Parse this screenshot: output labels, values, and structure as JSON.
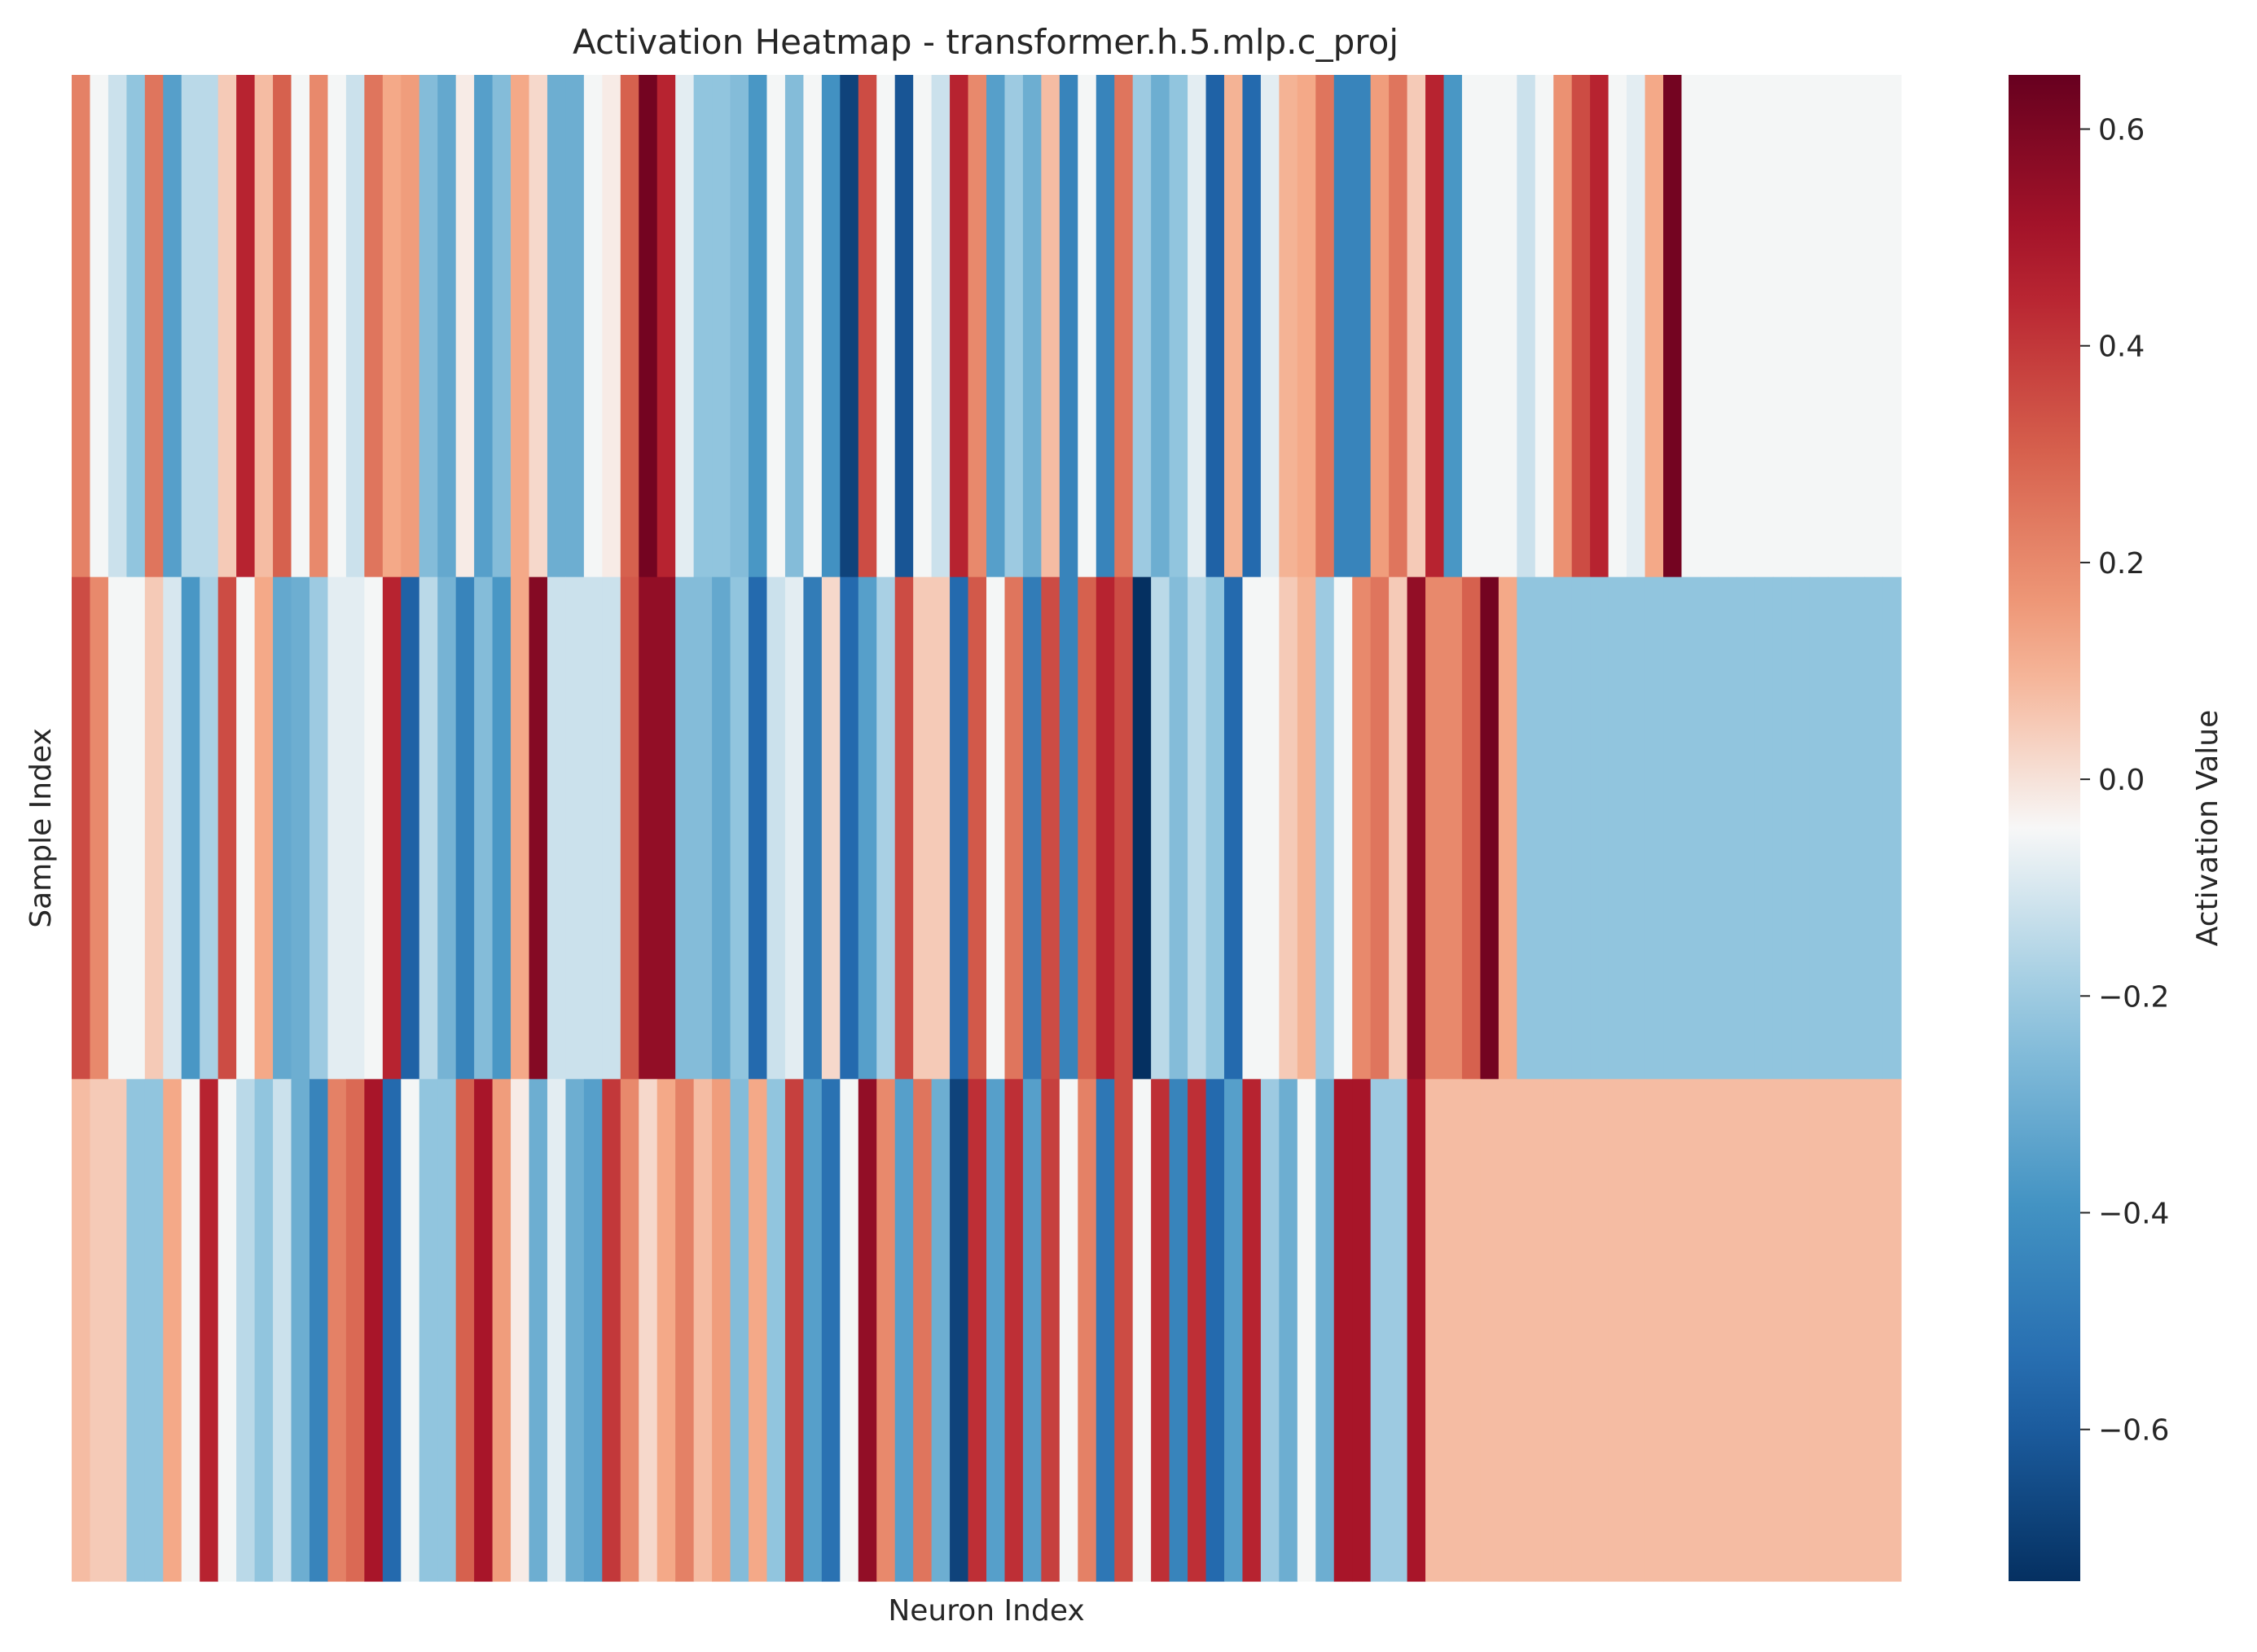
{
  "chart_data": {
    "type": "heatmap",
    "title": "Activation Heatmap - transformer.h.5.mlp.c_proj",
    "xlabel": "Neuron Index",
    "ylabel": "Sample Index",
    "colorbar_label": "Activation Value",
    "colormap": "RdBu_r",
    "vmin": -0.74,
    "vmax": 0.65,
    "colorbar_ticks": [
      0.6,
      0.4,
      0.2,
      0.0,
      -0.2,
      -0.4,
      -0.6
    ],
    "colorbar_tick_labels": [
      "0.6",
      "0.4",
      "0.2",
      "0.0",
      "−0.2",
      "−0.4",
      "−0.6"
    ],
    "n_samples": 3,
    "n_neurons": 100,
    "values": [
      [
        0.22,
        -0.05,
        -0.12,
        -0.22,
        0.25,
        -0.35,
        -0.15,
        -0.15,
        0.05,
        0.45,
        0.08,
        0.3,
        -0.05,
        0.2,
        -0.05,
        -0.12,
        0.25,
        0.12,
        0.15,
        -0.25,
        -0.32,
        -0.02,
        -0.35,
        -0.25,
        0.12,
        0.02,
        -0.3,
        -0.3,
        -0.05,
        -0.02,
        0.3,
        0.62,
        0.45,
        -0.08,
        -0.22,
        -0.22,
        -0.25,
        -0.38,
        -0.05,
        -0.25,
        -0.05,
        -0.4,
        -0.68,
        0.35,
        -0.05,
        -0.62,
        -0.05,
        -0.12,
        0.45,
        0.2,
        -0.35,
        -0.2,
        -0.3,
        0.08,
        -0.45,
        -0.05,
        -0.45,
        0.25,
        -0.2,
        -0.3,
        -0.22,
        -0.08,
        -0.58,
        0.1,
        -0.55,
        -0.08,
        0.1,
        0.12,
        0.25,
        -0.45,
        -0.45,
        0.15,
        0.25,
        0.05,
        0.45,
        -0.38,
        -0.05,
        -0.05,
        -0.05,
        -0.12,
        -0.05,
        0.18,
        0.35,
        0.45,
        -0.05,
        -0.08,
        0.12,
        0.62,
        -0.05,
        -0.05,
        -0.05,
        -0.05,
        -0.05,
        -0.05,
        -0.05,
        -0.05,
        -0.05,
        -0.05,
        -0.05,
        -0.05
      ],
      [
        0.35,
        0.2,
        -0.05,
        -0.05,
        0.05,
        -0.1,
        -0.38,
        -0.18,
        0.35,
        -0.05,
        0.12,
        -0.32,
        -0.3,
        -0.2,
        -0.08,
        -0.08,
        -0.05,
        0.45,
        -0.58,
        -0.15,
        -0.28,
        -0.45,
        -0.25,
        -0.38,
        0.12,
        0.58,
        -0.12,
        -0.12,
        -0.12,
        -0.12,
        0.32,
        0.55,
        0.55,
        -0.25,
        -0.25,
        -0.32,
        -0.22,
        -0.55,
        -0.12,
        -0.08,
        -0.48,
        0.02,
        -0.55,
        -0.35,
        -0.18,
        0.35,
        0.05,
        0.05,
        -0.55,
        0.32,
        -0.05,
        0.25,
        -0.48,
        0.35,
        -0.45,
        0.3,
        0.45,
        0.35,
        -0.74,
        -0.15,
        -0.25,
        -0.15,
        -0.22,
        -0.55,
        -0.05,
        -0.05,
        0.05,
        0.1,
        -0.2,
        -0.05,
        0.2,
        0.25,
        0.05,
        0.55,
        0.2,
        0.2,
        0.3,
        0.62,
        0.12,
        -0.22,
        -0.22,
        -0.22,
        -0.22,
        -0.22,
        -0.22,
        -0.22,
        -0.22,
        -0.22,
        -0.22,
        -0.22,
        -0.22,
        -0.22,
        -0.22,
        -0.22,
        -0.22,
        -0.22,
        -0.22,
        -0.22,
        -0.22,
        -0.22
      ],
      [
        0.08,
        0.05,
        0.05,
        -0.22,
        -0.22,
        0.12,
        -0.05,
        0.45,
        -0.05,
        -0.15,
        -0.22,
        -0.12,
        -0.3,
        -0.45,
        0.22,
        0.28,
        0.5,
        -0.55,
        -0.05,
        -0.22,
        -0.22,
        0.3,
        0.5,
        0.15,
        -0.02,
        -0.3,
        -0.08,
        -0.3,
        -0.35,
        0.4,
        0.2,
        0.02,
        0.12,
        0.22,
        0.08,
        0.15,
        -0.25,
        0.12,
        -0.22,
        0.38,
        -0.35,
        -0.52,
        -0.05,
        0.55,
        0.2,
        -0.35,
        0.25,
        -0.3,
        -0.68,
        0.42,
        -0.35,
        0.42,
        -0.35,
        0.38,
        -0.05,
        0.22,
        -0.5,
        0.35,
        -0.05,
        0.42,
        -0.45,
        0.42,
        -0.55,
        -0.35,
        0.45,
        -0.2,
        -0.3,
        -0.05,
        -0.3,
        0.5,
        0.5,
        -0.2,
        -0.2,
        0.5,
        0.08,
        0.08,
        0.08,
        0.08,
        0.08,
        0.08,
        0.08,
        0.08,
        0.08,
        0.08,
        0.08,
        0.08,
        0.08,
        0.08,
        0.08,
        0.08,
        0.08,
        0.08,
        0.08,
        0.08,
        0.08,
        0.08,
        0.08,
        0.08,
        0.08,
        0.08
      ]
    ]
  }
}
